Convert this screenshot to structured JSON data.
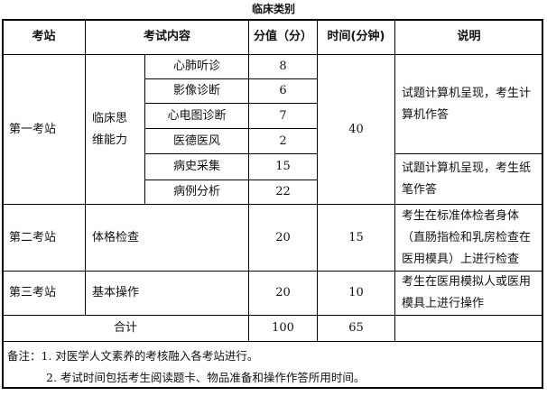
{
  "title": "临床类别",
  "headers": [
    "考站",
    "考试内容",
    "分值（分）",
    "时间(分钟)",
    "说明"
  ],
  "station1": {
    "name": "第一考站",
    "group": "临床思维能力",
    "items": [
      {
        "name": "心肺听诊",
        "score": "8"
      },
      {
        "name": "影像诊断",
        "score": "6"
      },
      {
        "name": "心电图诊断",
        "score": "7"
      },
      {
        "name": "医德医风",
        "score": "2"
      },
      {
        "name": "病史采集",
        "score": "15"
      },
      {
        "name": "病例分析",
        "score": "22"
      }
    ],
    "time": "40",
    "desc1": "试题计算机呈现，考生计算机作答",
    "desc2": "试题计算机呈现，考生纸笔作答"
  },
  "station2": {
    "name": "第二考站",
    "content": "体格检查",
    "score": "20",
    "time": "15",
    "desc": "考生在标准体检者身体（直肠指检和乳房检查在医用模具）上进行检查"
  },
  "station3": {
    "name": "第三考站",
    "content": "基本操作",
    "score": "20",
    "time": "10",
    "desc": "考生在医用模拟人或医用模具上进行操作"
  },
  "total": {
    "label": "合计",
    "score": "100",
    "time": "65"
  },
  "notes": [
    "备注：1. 对医学人文素养的考核融入各考站进行。",
    "2. 考试时间包括考生阅读题卡、物品准备和操作作答所用时间。"
  ]
}
